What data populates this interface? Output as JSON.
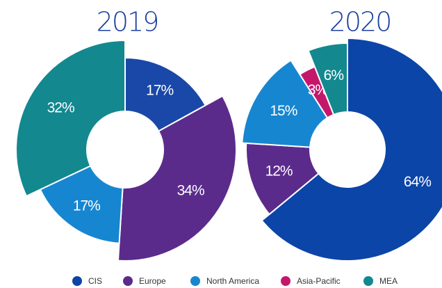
{
  "chart_data": [
    {
      "type": "pie",
      "title": "2019",
      "categories": [
        "CIS",
        "Europe",
        "North America",
        "MEA"
      ],
      "values": [
        17,
        34,
        17,
        32
      ],
      "value_labels": [
        "17%",
        "34%",
        "17%",
        "32%"
      ],
      "colors": [
        "#1a48a8",
        "#5b2b8c",
        "#1786d0",
        "#13888f"
      ]
    },
    {
      "type": "pie",
      "title": "2020",
      "categories": [
        "CIS",
        "Europe",
        "North America",
        "Asia-Pacific",
        "MEA"
      ],
      "values": [
        64,
        12,
        15,
        3,
        6
      ],
      "value_labels": [
        "64%",
        "12%",
        "15%",
        "3%",
        "6%"
      ],
      "colors": [
        "#0c45a8",
        "#5b2b8c",
        "#1786d0",
        "#c4176c",
        "#13888f"
      ]
    }
  ],
  "legend": {
    "names": [
      "CIS",
      "Europe",
      "North America",
      "Asia-Pacific",
      "MEA"
    ],
    "colors": [
      "#0c45a8",
      "#5b2b8c",
      "#1786d0",
      "#c4176c",
      "#13888f"
    ]
  }
}
